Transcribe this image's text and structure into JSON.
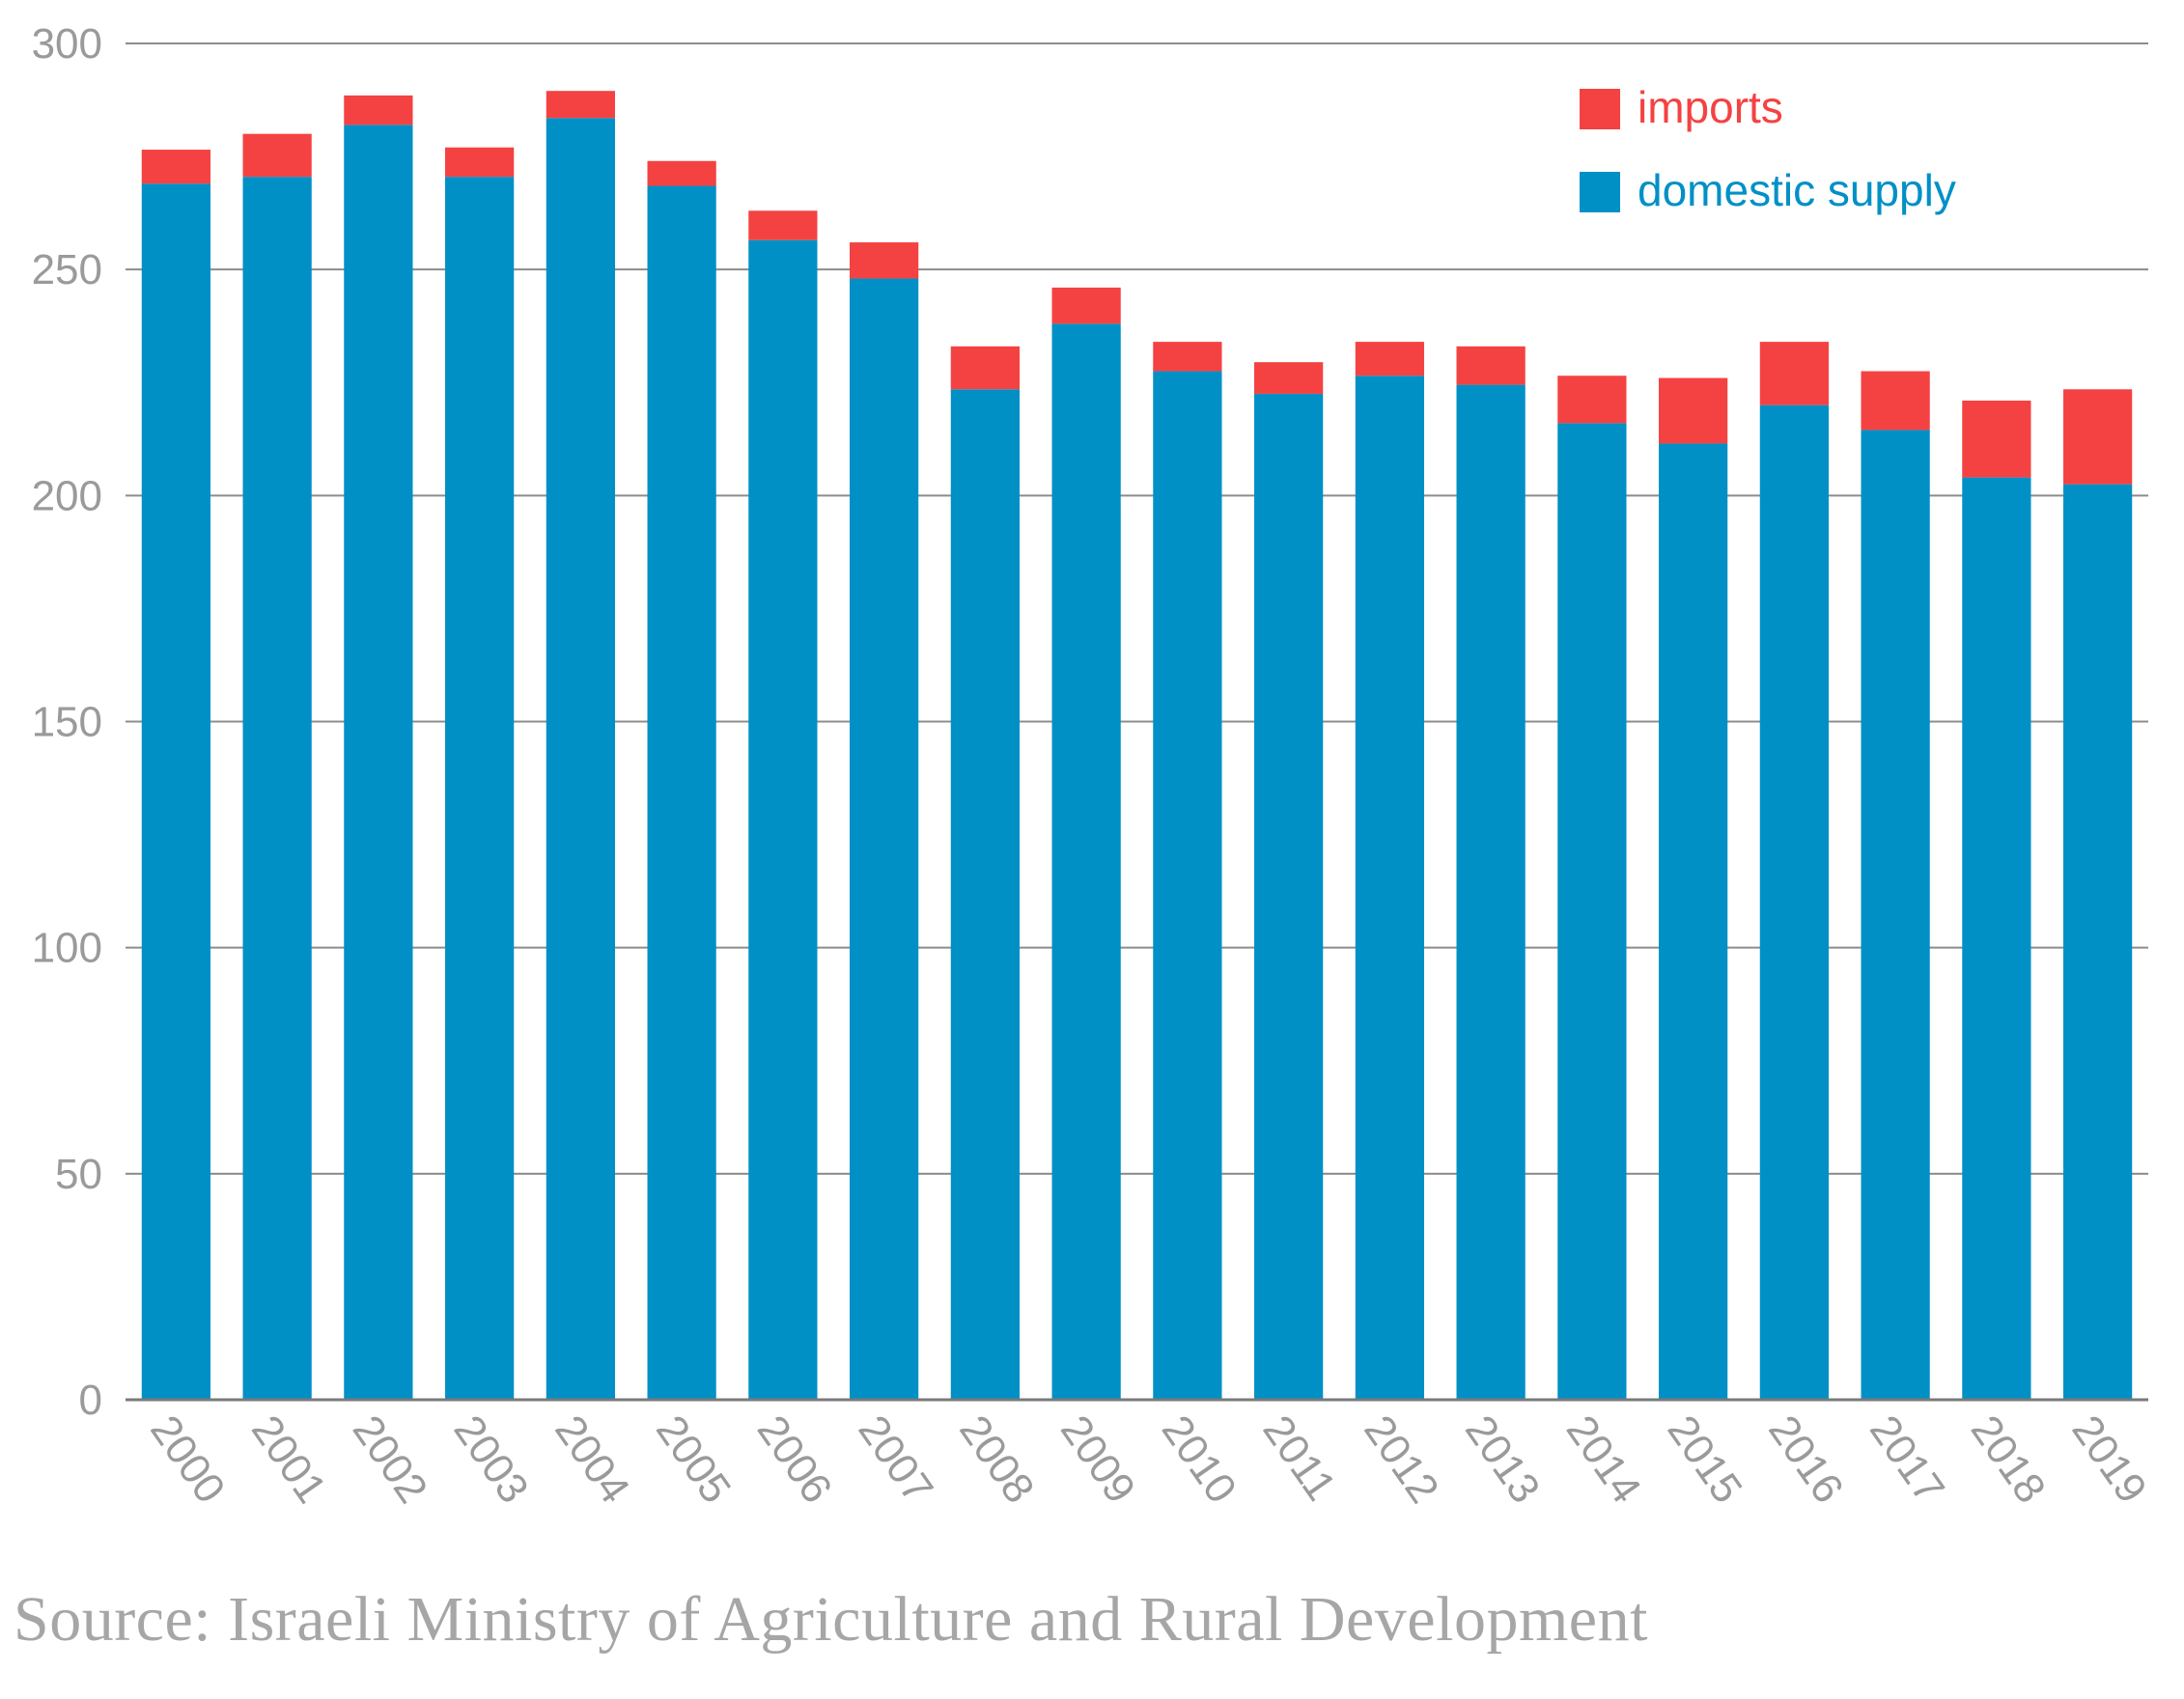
{
  "colors": {
    "imports": "#f44242",
    "domestic_supply": "#0090c6",
    "grid": "#8c8c8c",
    "tick_text": "#9a9a9a",
    "source_text": "#a6a6a6"
  },
  "chart_data": {
    "type": "bar",
    "stacked": true,
    "title": "",
    "xlabel": "",
    "ylabel": "",
    "ylim": [
      0,
      300
    ],
    "yticks": [
      0,
      50,
      100,
      150,
      200,
      250,
      300
    ],
    "grid": true,
    "legend_position": "top-right",
    "categories": [
      "2000",
      "2001",
      "2002",
      "2003",
      "2004",
      "2005",
      "2006",
      "2007",
      "2008",
      "2009",
      "2010",
      "2011",
      "2012",
      "2013",
      "2014",
      "2015",
      "2016",
      "2017",
      "2018",
      "2019"
    ],
    "series": [
      {
        "name": "domestic supply",
        "color": "#0090c6",
        "values": [
          269,
          270.5,
          282,
          270.5,
          283.5,
          268.5,
          256.5,
          248,
          223.5,
          238,
          227.5,
          222.5,
          226.5,
          224.5,
          216,
          211.5,
          220,
          214.5,
          204,
          202.5
        ]
      },
      {
        "name": "imports",
        "color": "#f44242",
        "values": [
          7.5,
          9.5,
          6.5,
          6.5,
          6,
          5.5,
          6.5,
          8,
          9.5,
          8,
          6.5,
          7,
          7.5,
          8.5,
          10.5,
          14.5,
          14,
          13,
          17,
          21
        ]
      }
    ],
    "legend": [
      "imports",
      "domestic supply"
    ]
  },
  "source_note": "Source: Israeli Ministry of Agriculture and Rural Development"
}
